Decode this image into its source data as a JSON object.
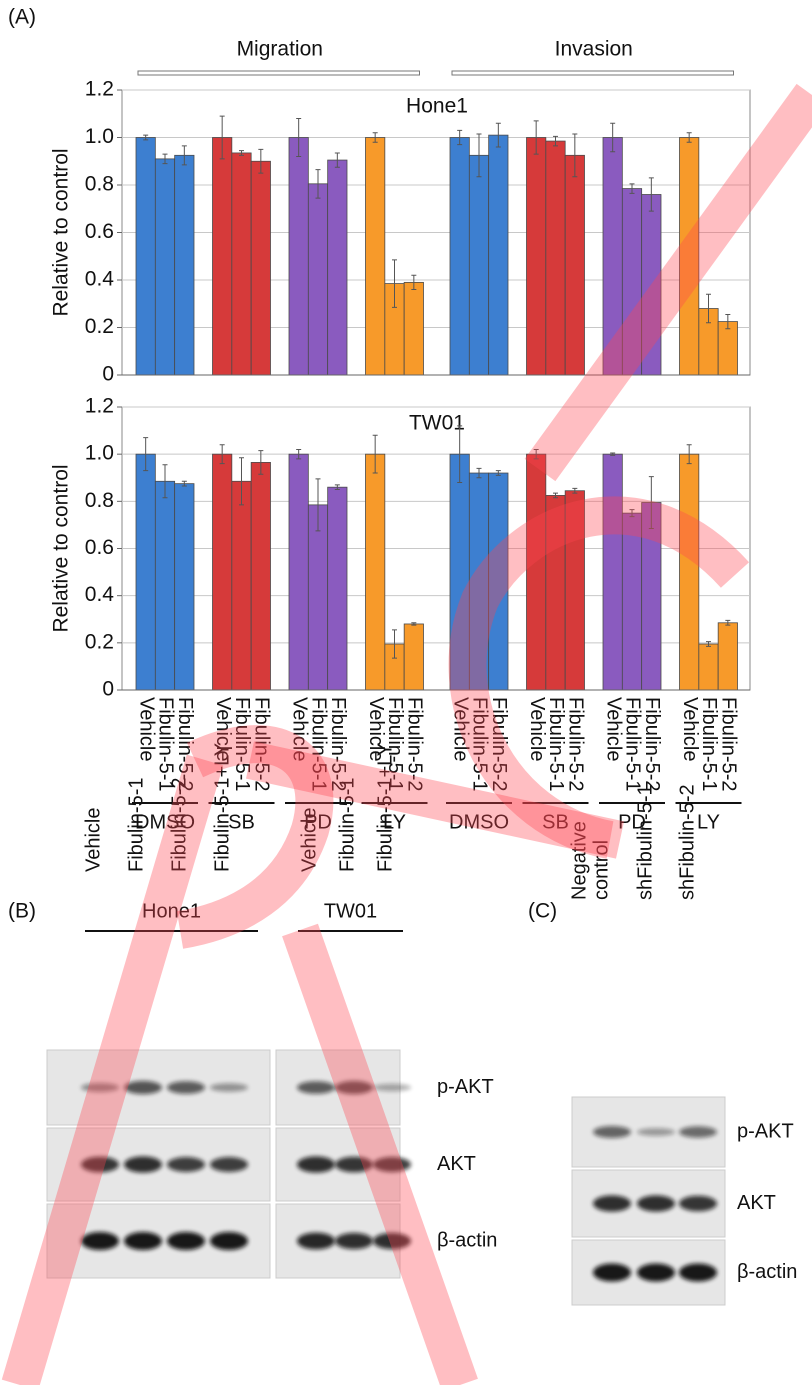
{
  "panel_a": {
    "label": "(A)",
    "sections": [
      "Migration",
      "Invasion"
    ],
    "categories": [
      "Vehicle",
      "Fibulin-5-1",
      "Fibulin-5-2",
      "Vehicle",
      "Fibulin-5-1",
      "Fibulin-5-2",
      "Vehicle",
      "Fibulin-5-1",
      "Fibulin-5-2",
      "Vehicle",
      "Fibulin-5-1",
      "Fibulin-5-2",
      "Vehicle",
      "Fibulin-5-1",
      "Fibulin-5-2",
      "Vehicle",
      "Fibulin-5-1",
      "Fibulin-5-2",
      "Vehicle",
      "Fibulin-5-1",
      "Fibulin-5-2",
      "Vehicle",
      "Fibulin-5-1",
      "Fibulin-5-2"
    ],
    "groups": [
      {
        "name": "DMSO",
        "color": "#3d7fd0"
      },
      {
        "name": "SB",
        "color": "#d63a3a"
      },
      {
        "name": "PD",
        "color": "#8a5bbf"
      },
      {
        "name": "LY",
        "color": "#f79a2a"
      },
      {
        "name": "DMSO",
        "color": "#3d7fd0"
      },
      {
        "name": "SB",
        "color": "#d63a3a"
      },
      {
        "name": "PD",
        "color": "#8a5bbf"
      },
      {
        "name": "LY",
        "color": "#f79a2a"
      }
    ]
  },
  "chart_data": [
    {
      "type": "bar",
      "title": "Hone1",
      "ylabel": "Relative to control",
      "ylim": [
        0,
        1.2
      ],
      "yticks": [
        0,
        0.2,
        0.4,
        0.6,
        0.8,
        {
          "value": 1,
          "label": "1.0"
        },
        1.2
      ],
      "grid": true,
      "values": [
        1.0,
        0.91,
        0.925,
        1.0,
        0.935,
        0.9,
        1.0,
        0.805,
        0.905,
        1.0,
        0.385,
        0.39,
        1.0,
        0.925,
        1.01,
        1.0,
        0.985,
        0.925,
        1.0,
        0.785,
        0.76,
        1.0,
        0.28,
        0.225
      ],
      "errors": [
        0.01,
        0.02,
        0.04,
        0.09,
        0.01,
        0.05,
        0.08,
        0.06,
        0.03,
        0.02,
        0.1,
        0.03,
        0.03,
        0.09,
        0.05,
        0.07,
        0.02,
        0.09,
        0.06,
        0.02,
        0.07,
        0.02,
        0.06,
        0.03
      ]
    },
    {
      "type": "bar",
      "title": "TW01",
      "ylabel": "Relative to control",
      "ylim": [
        0,
        1.2
      ],
      "yticks": [
        0,
        0.2,
        0.4,
        0.6,
        0.8,
        {
          "value": 1,
          "label": "1.0"
        },
        1.2
      ],
      "grid": true,
      "values": [
        1.0,
        0.885,
        0.875,
        1.0,
        0.885,
        0.965,
        1.0,
        0.785,
        0.86,
        1.0,
        0.195,
        0.28,
        1.0,
        0.92,
        0.92,
        1.0,
        0.825,
        0.845,
        1.0,
        0.75,
        0.795,
        1.0,
        0.195,
        0.285
      ],
      "errors": [
        0.07,
        0.07,
        0.01,
        0.04,
        0.1,
        0.05,
        0.02,
        0.11,
        0.01,
        0.08,
        0.06,
        0.005,
        0.12,
        0.02,
        0.01,
        0.02,
        0.01,
        0.01,
        0.005,
        0.015,
        0.11,
        0.04,
        0.01,
        0.01
      ]
    }
  ],
  "panel_b": {
    "label": "(B)",
    "blots": [
      {
        "title": "Hone1",
        "lanes": [
          "Vehicle",
          "Fibulin-5-1",
          "Fibulin-5-2",
          "Fibulin-5-1+LY"
        ]
      },
      {
        "title": "TW01",
        "lanes": [
          "Vehicle",
          "Fibulin-5-1",
          "Fibulin-5-1+LY"
        ]
      }
    ],
    "rows": [
      "p-AKT",
      "AKT",
      "β-actin"
    ]
  },
  "panel_c": {
    "label": "(C)",
    "lanes": [
      [
        "Negative",
        "control"
      ],
      [
        "shFibulin-5-1"
      ],
      [
        "shFibulin-5-2"
      ]
    ],
    "rows": [
      "p-AKT",
      "AKT",
      "β-actin"
    ]
  }
}
